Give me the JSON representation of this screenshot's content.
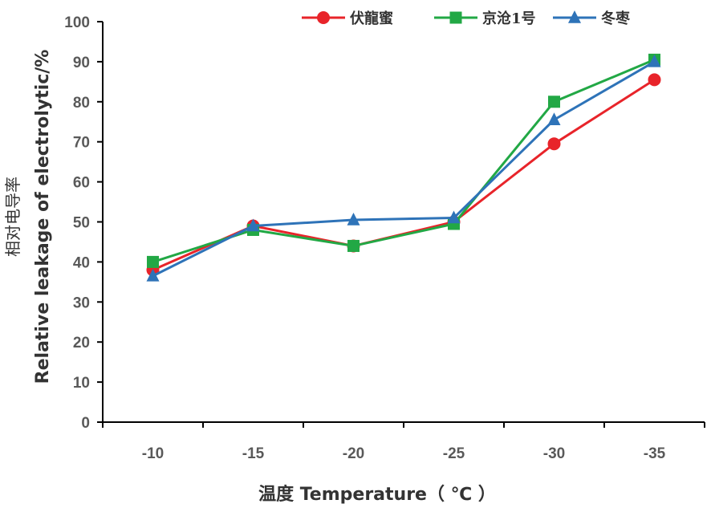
{
  "chart_data": {
    "type": "line",
    "categories": [
      "-10",
      "-15",
      "-20",
      "-25",
      "-30",
      "-35"
    ],
    "series": [
      {
        "name": "伏龍蜜",
        "color": "#e8242a",
        "marker": "circle",
        "values": [
          38,
          49,
          44,
          50,
          69.5,
          85.5
        ]
      },
      {
        "name": "京沧1号",
        "color": "#22a845",
        "marker": "square",
        "values": [
          40,
          48,
          44,
          49.5,
          80,
          90.5
        ]
      },
      {
        "name": "冬枣",
        "color": "#2e73b8",
        "marker": "triangle",
        "values": [
          36.5,
          49,
          50.5,
          51,
          75.5,
          90
        ]
      }
    ],
    "yticks": [
      "0",
      "10",
      "20",
      "30",
      "40",
      "50",
      "60",
      "70",
      "80",
      "90",
      "100"
    ],
    "ylim": [
      0,
      100
    ],
    "xlabel": "温度 Temperature（ ℃ ）",
    "ylabel_cn": "相对电导率",
    "ylabel": "Relative leakage of electrolytic/%",
    "grid": false,
    "legend_position": "top-right"
  }
}
